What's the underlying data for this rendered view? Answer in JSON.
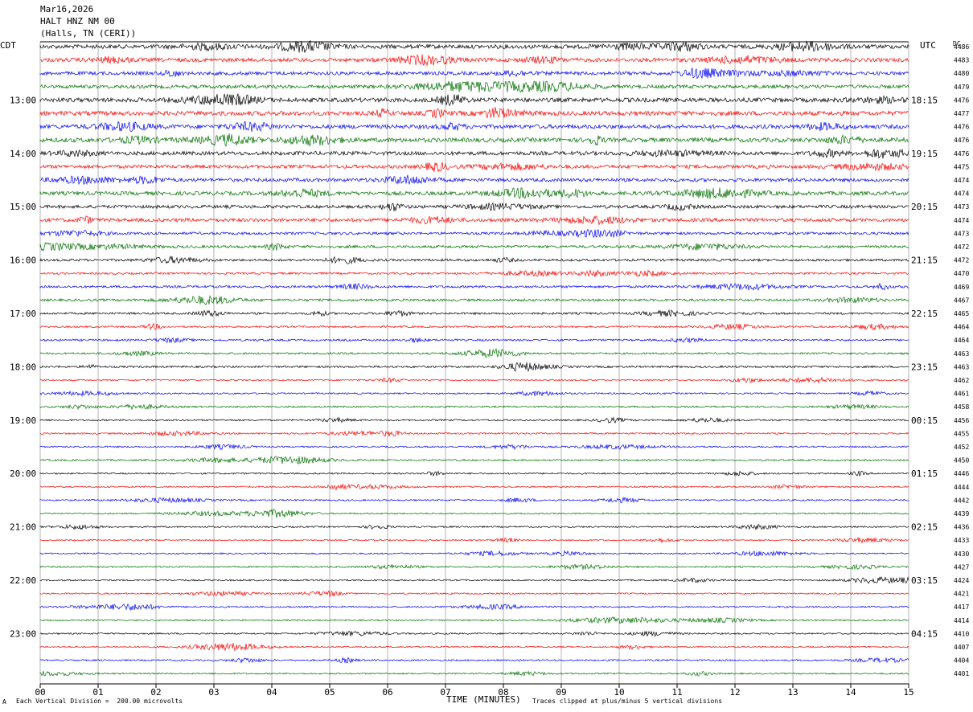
{
  "header": {
    "date": "Mar16,2026",
    "station": "HALT HNZ NM 00",
    "location": "(Halls, TN (CERI))"
  },
  "left_axis_label": "CDT",
  "right_axis_label": "UTC",
  "dc_label": "DC",
  "footer": {
    "scale_note": "Each Vertical Division =  200.00 microvolts",
    "clip_note": "Traces clipped at plus/minus 5 vertical divisions",
    "corner_mark": "A"
  },
  "colors": {
    "trace_cycle": [
      "#000000",
      "#ff0000",
      "#0000ff",
      "#007000"
    ],
    "grid": "#808080"
  },
  "chart_data": {
    "type": "line",
    "title": "HALT HNZ NM 00",
    "xlabel": "TIME (MINUTES)",
    "xlim": [
      0,
      15
    ],
    "x_ticks": [
      "00",
      "01",
      "02",
      "03",
      "04",
      "05",
      "06",
      "07",
      "08",
      "09",
      "10",
      "11",
      "12",
      "13",
      "14",
      "15"
    ],
    "left_time_labels": [
      "13:00",
      "14:00",
      "15:00",
      "16:00",
      "17:00",
      "18:00",
      "19:00",
      "20:00",
      "21:00",
      "22:00",
      "23:00"
    ],
    "right_time_labels": [
      "18:15",
      "19:15",
      "20:15",
      "21:15",
      "22:15",
      "23:15",
      "00:15",
      "01:15",
      "02:15",
      "03:15",
      "04:15"
    ],
    "first_labeled_row": 4,
    "rows_per_hour": 4,
    "dc_values": [
      4486,
      4483,
      4480,
      4479,
      4476,
      4477,
      4476,
      4476,
      4476,
      4475,
      4474,
      4474,
      4473,
      4474,
      4473,
      4472,
      4472,
      4470,
      4469,
      4467,
      4465,
      4464,
      4464,
      4463,
      4463,
      4462,
      4461,
      4458,
      4456,
      4455,
      4452,
      4450,
      4446,
      4444,
      4442,
      4439,
      4436,
      4433,
      4430,
      4427,
      4424,
      4421,
      4417,
      4414,
      4410,
      4407,
      4404,
      4401
    ],
    "trace_activity": [
      0.55,
      0.5,
      0.45,
      0.45,
      0.6,
      0.6,
      0.55,
      0.6,
      0.5,
      0.45,
      0.45,
      0.5,
      0.4,
      0.45,
      0.3,
      0.3,
      0.25,
      0.2,
      0.25,
      0.25,
      0.2,
      0.15,
      0.18,
      0.15,
      0.18,
      0.1,
      0.1,
      0.12,
      0.12,
      0.12,
      0.1,
      0.12,
      0.1,
      0.1,
      0.1,
      0.08,
      0.1,
      0.08,
      0.08,
      0.08,
      0.1,
      0.08,
      0.1,
      0.08,
      0.1,
      0.08,
      0.1,
      0.08
    ]
  }
}
